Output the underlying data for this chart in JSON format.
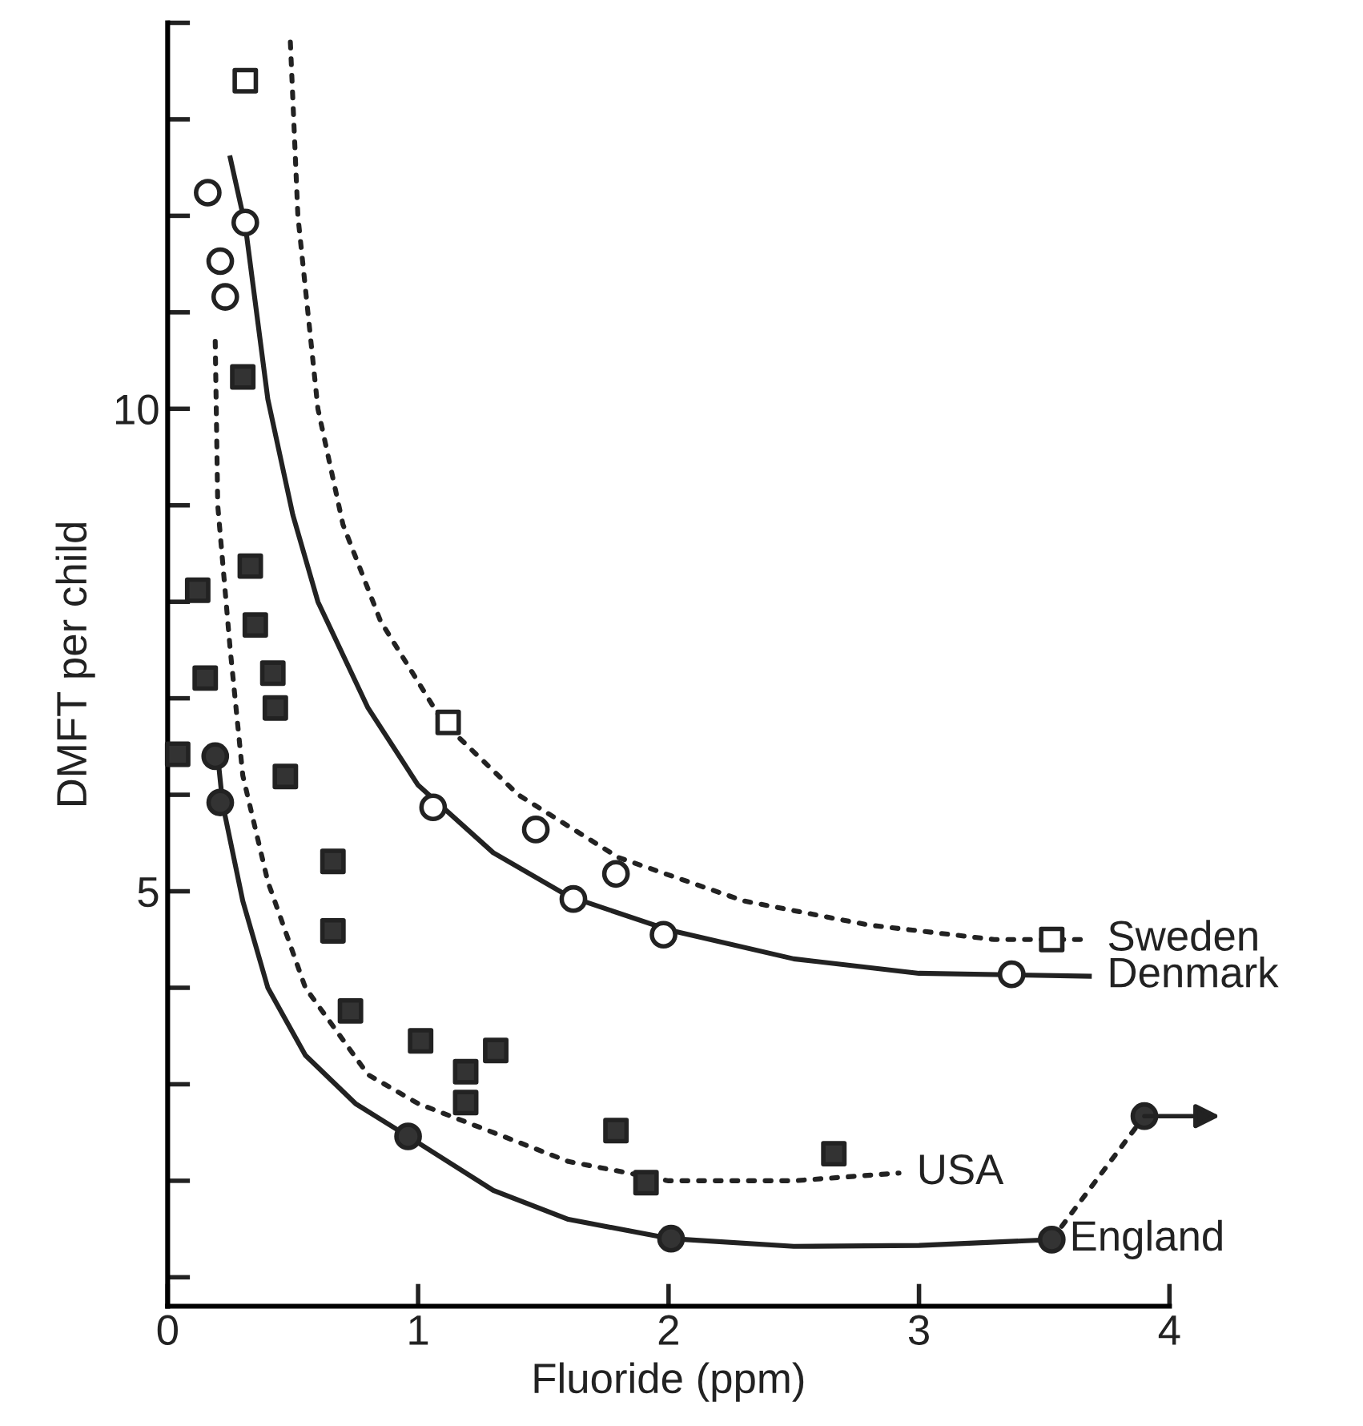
{
  "chart_data": {
    "type": "scatter",
    "xlabel": "Fluoride (ppm)",
    "ylabel": "DMFT per child",
    "xlim": [
      0,
      4
    ],
    "xticks": [
      0,
      1,
      2,
      3,
      4
    ],
    "ylim": [
      0.7,
      14
    ],
    "yticks": [
      {
        "value": 1,
        "label": null
      },
      {
        "value": 2,
        "label": null
      },
      {
        "value": 3,
        "label": null
      },
      {
        "value": 4,
        "label": null
      },
      5,
      {
        "value": 6,
        "label": null
      },
      {
        "value": 7,
        "label": null
      },
      {
        "value": 8,
        "label": null
      },
      {
        "value": 9,
        "label": null
      },
      10,
      {
        "value": 11,
        "label": null
      },
      {
        "value": 12,
        "label": null
      },
      {
        "value": 13,
        "label": null
      },
      {
        "value": 14,
        "label": null
      }
    ],
    "grid": false,
    "legend": false,
    "series": [
      {
        "marker": "square",
        "color": "#ffffff",
        "x": [
          0.31,
          1.12,
          3.53
        ],
        "values": [
          13.4,
          6.75,
          4.5
        ]
      },
      {
        "marker": "circle",
        "color": "#ffffff",
        "x": [
          0.16,
          0.31,
          0.21,
          0.23,
          1.06,
          1.47,
          1.79,
          1.62,
          1.98,
          3.37
        ],
        "values": [
          12.24,
          11.93,
          11.53,
          11.16,
          5.87,
          5.64,
          5.18,
          4.92,
          4.55,
          4.14
        ]
      },
      {
        "marker": "square",
        "color": "#333333",
        "x": [
          0.04,
          0.12,
          0.15,
          0.3,
          0.33,
          0.35,
          0.42,
          0.43,
          0.47,
          0.66,
          0.66,
          0.73,
          1.01,
          1.19,
          1.19,
          1.31,
          1.79,
          1.91,
          2.66
        ],
        "values": [
          6.42,
          8.12,
          7.21,
          10.33,
          8.37,
          7.76,
          7.26,
          6.9,
          6.19,
          5.31,
          4.59,
          3.76,
          3.45,
          3.13,
          2.81,
          3.35,
          2.52,
          1.98,
          2.28
        ]
      },
      {
        "marker": "circle",
        "color": "#333333",
        "x": [
          0.19,
          0.21,
          0.96,
          2.01,
          3.53,
          3.9
        ],
        "values": [
          6.4,
          5.92,
          2.46,
          1.4,
          1.39,
          2.67
        ]
      },
      {
        "type": "line",
        "name": "Sweden",
        "line_style": "dotted",
        "color": "#222222",
        "x": [
          0.49,
          0.52,
          0.6,
          0.7,
          0.85,
          1.1,
          1.4,
          1.8,
          2.3,
          2.8,
          3.3,
          3.68
        ],
        "values": [
          13.8,
          12.0,
          10.0,
          8.8,
          7.8,
          6.75,
          6.0,
          5.35,
          4.9,
          4.65,
          4.5,
          4.5
        ]
      },
      {
        "type": "line",
        "name": "Denmark",
        "line_style": "solid",
        "color": "#222222",
        "x": [
          0.25,
          0.31,
          0.4,
          0.5,
          0.6,
          0.8,
          1.0,
          1.3,
          1.6,
          2.0,
          2.5,
          3.0,
          3.68
        ],
        "values": [
          12.6,
          11.9,
          10.1,
          8.9,
          8.0,
          6.9,
          6.1,
          5.4,
          4.95,
          4.6,
          4.3,
          4.15,
          4.12
        ]
      },
      {
        "type": "line",
        "name": "USA",
        "line_style": "dotted",
        "color": "#222222",
        "x": [
          0.19,
          0.2,
          0.25,
          0.3,
          0.4,
          0.55,
          0.8,
          1.0,
          1.3,
          1.6,
          2.0,
          2.5,
          2.92
        ],
        "values": [
          10.7,
          9.0,
          7.5,
          6.2,
          5.1,
          4.0,
          3.1,
          2.8,
          2.5,
          2.2,
          2.0,
          2.0,
          2.08
        ]
      },
      {
        "type": "line",
        "name": "England",
        "line_style": "solid",
        "color": "#222222",
        "x": [
          0.2,
          0.22,
          0.3,
          0.4,
          0.55,
          0.75,
          0.96,
          1.3,
          1.6,
          2.01,
          2.5,
          3.0,
          3.53
        ],
        "values": [
          6.4,
          5.9,
          4.9,
          4.0,
          3.3,
          2.8,
          2.46,
          1.9,
          1.6,
          1.4,
          1.32,
          1.33,
          1.39
        ]
      },
      {
        "type": "line",
        "line_style": "dotted",
        "color": "#222222",
        "x": [
          3.53,
          3.9
        ],
        "values": [
          1.39,
          2.67
        ]
      }
    ]
  }
}
